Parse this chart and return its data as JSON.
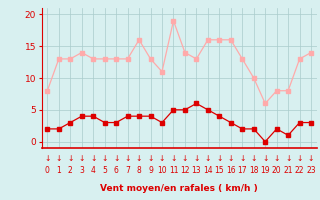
{
  "x": [
    0,
    1,
    2,
    3,
    4,
    5,
    6,
    7,
    8,
    9,
    10,
    11,
    12,
    13,
    14,
    15,
    16,
    17,
    18,
    19,
    20,
    21,
    22,
    23
  ],
  "avg_wind": [
    2,
    2,
    3,
    4,
    4,
    3,
    3,
    4,
    4,
    4,
    3,
    5,
    5,
    6,
    5,
    4,
    3,
    2,
    2,
    0,
    2,
    1,
    3,
    3
  ],
  "gusts": [
    8,
    13,
    13,
    14,
    13,
    13,
    13,
    13,
    16,
    13,
    11,
    19,
    14,
    13,
    16,
    16,
    16,
    13,
    10,
    6,
    8,
    8,
    13,
    14
  ],
  "avg_color": "#dd0000",
  "gust_color": "#ffaaaa",
  "bg_color": "#d8f0f0",
  "grid_color": "#aacccc",
  "axis_line_color": "#dd0000",
  "tick_label_color": "#dd0000",
  "xlabel": "Vent moyen/en rafales ( km/h )",
  "xlabel_color": "#dd0000",
  "ylim": [
    -1,
    21
  ],
  "yticks": [
    0,
    5,
    10,
    15,
    20
  ],
  "marker_size": 2.5,
  "linewidth": 0.9,
  "arrow_color": "#dd0000"
}
